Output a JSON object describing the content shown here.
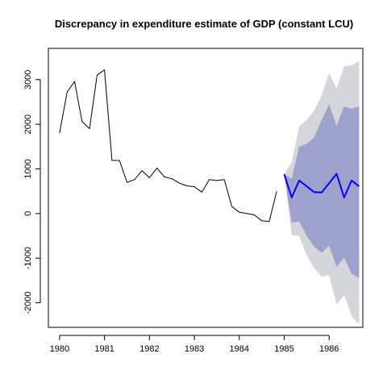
{
  "chart_data": {
    "type": "line",
    "title": "Discrepancy in expenditure estimate of GDP (constant LCU)",
    "xlabel": "",
    "ylabel": "",
    "xlim": [
      1979.75,
      1986.75
    ],
    "ylim": [
      -2550,
      3700
    ],
    "x_ticks": [
      1980,
      1981,
      1982,
      1983,
      1984,
      1985,
      1986
    ],
    "y_ticks": [
      -2000,
      -1000,
      0,
      1000,
      2000,
      3000
    ],
    "grid": false,
    "legend": "none",
    "series": [
      {
        "role": "historical",
        "color": "#000000",
        "x": [
          1980.0,
          1980.1667,
          1980.3333,
          1980.5,
          1980.6667,
          1980.8333,
          1981.0,
          1981.1667,
          1981.3333,
          1981.5,
          1981.6667,
          1981.8333,
          1982.0,
          1982.1667,
          1982.3333,
          1982.5,
          1982.6667,
          1982.8333,
          1983.0,
          1983.1667,
          1983.3333,
          1983.5,
          1983.6667,
          1983.8333,
          1984.0,
          1984.1667,
          1984.3333,
          1984.5,
          1984.6667,
          1984.8333
        ],
        "y": [
          1800,
          2720,
          2960,
          2060,
          1900,
          3100,
          3220,
          1190,
          1190,
          700,
          760,
          960,
          800,
          1020,
          820,
          780,
          680,
          620,
          600,
          480,
          760,
          740,
          760,
          160,
          30,
          0,
          -30,
          -160,
          -180,
          500
        ]
      },
      {
        "role": "forecast",
        "color": "#0000ff",
        "x": [
          1985.0,
          1985.1667,
          1985.3333,
          1985.5,
          1985.6667,
          1985.8333,
          1986.0,
          1986.1667,
          1986.3333,
          1986.5,
          1986.6667
        ],
        "y": [
          880,
          360,
          740,
          610,
          480,
          470,
          680,
          890,
          360,
          740,
          610
        ]
      }
    ],
    "intervals": [
      {
        "level": "outer",
        "color": "#d5d5dc",
        "x": [
          1985.0,
          1985.1667,
          1985.3333,
          1985.5,
          1985.6667,
          1985.8333,
          1986.0,
          1986.1667,
          1986.3333,
          1986.5,
          1986.6667
        ],
        "upper": [
          880,
          1150,
          1950,
          2100,
          2300,
          2650,
          3150,
          2800,
          3300,
          3320,
          3420
        ],
        "lower": [
          880,
          -480,
          -500,
          -940,
          -1220,
          -1420,
          -1380,
          -2040,
          -1820,
          -2300,
          -2480
        ]
      },
      {
        "level": "inner",
        "color": "#9ea1cc",
        "x": [
          1985.0,
          1985.1667,
          1985.3333,
          1985.5,
          1985.6667,
          1985.8333,
          1986.0,
          1986.1667,
          1986.3333,
          1986.5,
          1986.6667
        ],
        "upper": [
          880,
          780,
          1500,
          1560,
          1700,
          2100,
          2450,
          1960,
          2400,
          2350,
          2400
        ],
        "lower": [
          880,
          -200,
          -180,
          -500,
          -740,
          -880,
          -720,
          -1200,
          -980,
          -1350,
          -1450
        ]
      }
    ]
  }
}
